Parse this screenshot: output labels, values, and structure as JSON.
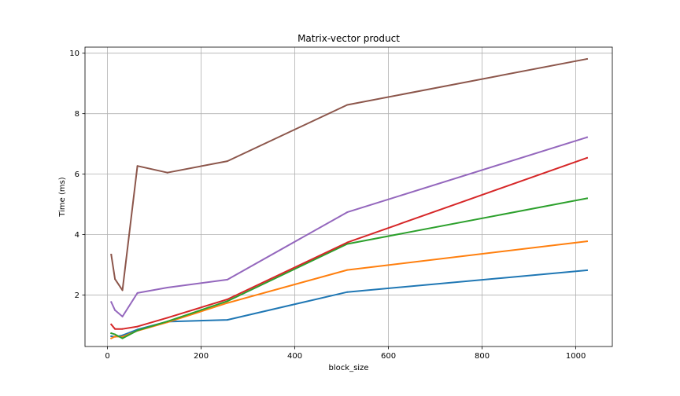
{
  "chart_data": {
    "type": "line",
    "title": "Matrix-vector product",
    "xlabel": "block_size",
    "ylabel": "Time (ms)",
    "xlim": [
      -48,
      1078
    ],
    "ylim": [
      0.3,
      10.2
    ],
    "xticks": [
      0,
      200,
      400,
      600,
      800,
      1000
    ],
    "yticks": [
      2,
      4,
      6,
      8,
      10
    ],
    "grid": true,
    "x": [
      8,
      16,
      32,
      64,
      128,
      256,
      512,
      1024
    ],
    "series": [
      {
        "color": "#1f77b4",
        "values": [
          0.64,
          0.62,
          0.67,
          0.86,
          1.12,
          1.18,
          2.1,
          2.82
        ]
      },
      {
        "color": "#ff7f0e",
        "values": [
          0.57,
          0.63,
          0.62,
          0.82,
          1.1,
          1.74,
          2.83,
          3.78
        ]
      },
      {
        "color": "#2ca02c",
        "values": [
          0.74,
          0.7,
          0.57,
          0.83,
          1.13,
          1.8,
          3.69,
          5.2
        ]
      },
      {
        "color": "#d62728",
        "values": [
          1.03,
          0.88,
          0.88,
          0.96,
          1.25,
          1.86,
          3.74,
          6.54
        ]
      },
      {
        "color": "#9467bd",
        "values": [
          1.77,
          1.5,
          1.29,
          2.07,
          2.25,
          2.51,
          4.74,
          7.22
        ]
      },
      {
        "color": "#8c564b",
        "values": [
          3.34,
          2.53,
          2.16,
          6.27,
          6.05,
          6.43,
          8.29,
          9.81
        ]
      }
    ]
  }
}
